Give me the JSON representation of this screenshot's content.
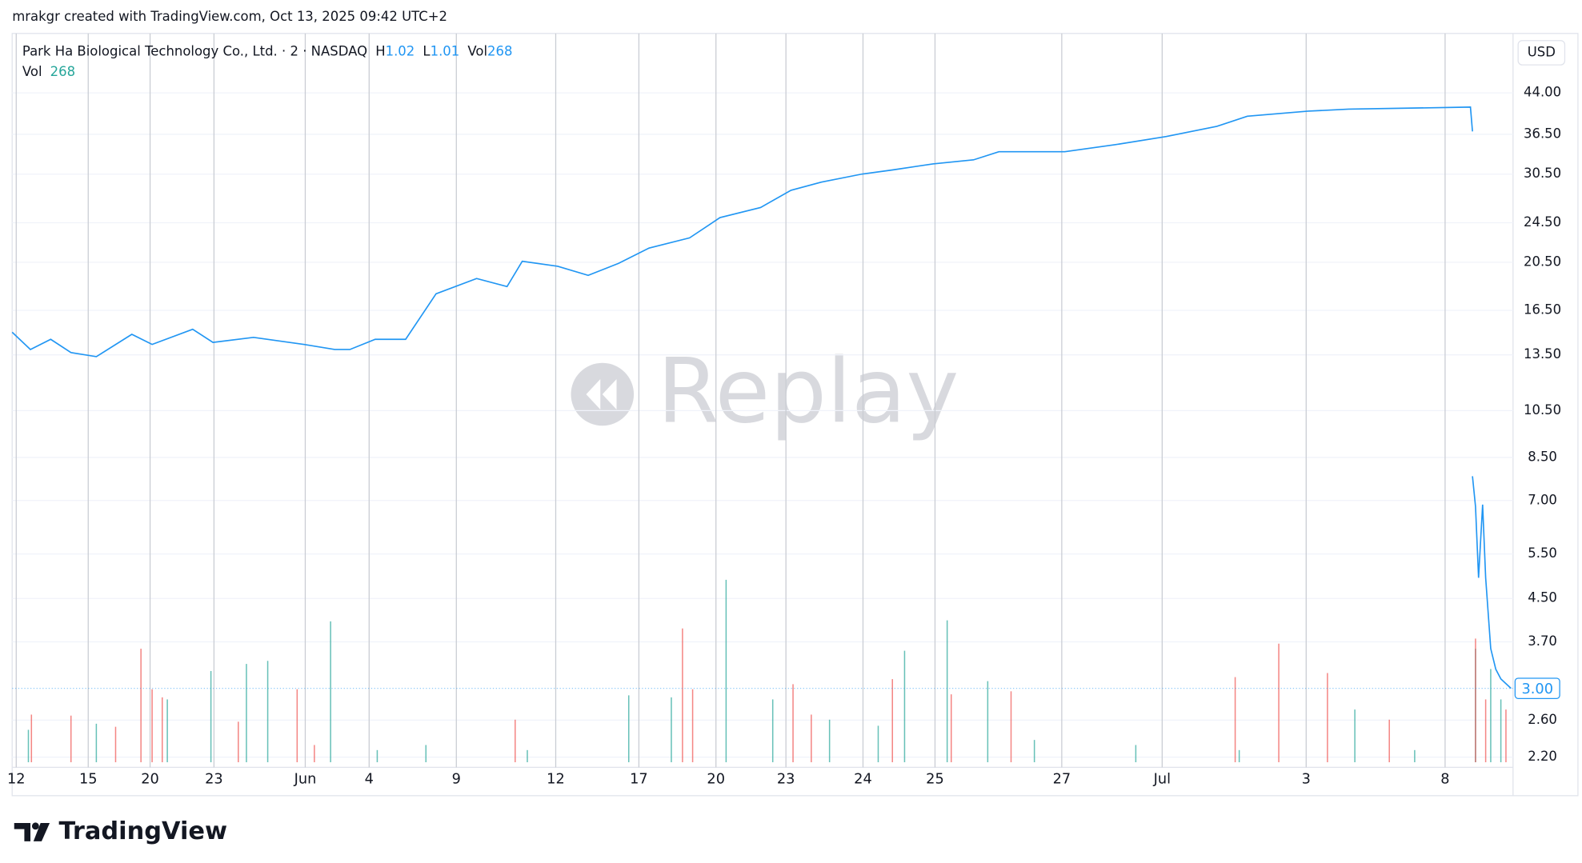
{
  "page": {
    "credit": "mrakgr created with TradingView.com, Oct 13, 2025 09:42 UTC+2",
    "brand": "TradingView",
    "watermark": "Replay",
    "currency": "USD"
  },
  "chart_data": {
    "type": "line",
    "legend": {
      "title": "Park Ha Biological Technology Co., Ltd. · 2 · NASDAQ",
      "high_key": "H",
      "high": "1.02",
      "low_key": "L",
      "low": "1.01",
      "vol_key": "Vol",
      "vol": "268"
    },
    "last_value_label": "3.00",
    "log_scale": true,
    "grid": true,
    "xlim": [
      0,
      1480
    ],
    "xticks": [
      {
        "value": 4,
        "label": "12"
      },
      {
        "value": 75,
        "label": "15"
      },
      {
        "value": 136,
        "label": "20"
      },
      {
        "value": 199,
        "label": "23"
      },
      {
        "value": 289,
        "label": "Jun"
      },
      {
        "value": 352,
        "label": "4"
      },
      {
        "value": 438,
        "label": "9"
      },
      {
        "value": 536,
        "label": "12"
      },
      {
        "value": 618,
        "label": "17"
      },
      {
        "value": 694,
        "label": "20"
      },
      {
        "value": 763,
        "label": "23"
      },
      {
        "value": 839,
        "label": "24"
      },
      {
        "value": 910,
        "label": "25"
      },
      {
        "value": 1035,
        "label": "27"
      },
      {
        "value": 1134,
        "label": "Jul"
      },
      {
        "value": 1276,
        "label": "3"
      },
      {
        "value": 1413,
        "label": "8"
      }
    ],
    "ylim": [
      2.15,
      57
    ],
    "yticks": [
      {
        "value": 44,
        "label": "44.00"
      },
      {
        "value": 36.5,
        "label": "36.50"
      },
      {
        "value": 30.5,
        "label": "30.50"
      },
      {
        "value": 24.5,
        "label": "24.50"
      },
      {
        "value": 20.5,
        "label": "20.50"
      },
      {
        "value": 16.5,
        "label": "16.50"
      },
      {
        "value": 13.5,
        "label": "13.50"
      },
      {
        "value": 10.5,
        "label": "10.50"
      },
      {
        "value": 8.5,
        "label": "8.50"
      },
      {
        "value": 7,
        "label": "7.00"
      },
      {
        "value": 5.5,
        "label": "5.50"
      },
      {
        "value": 4.5,
        "label": "4.50"
      },
      {
        "value": 3.7,
        "label": "3.70"
      },
      {
        "value": 2.6,
        "label": "2.60"
      },
      {
        "value": 2.2,
        "label": "2.20"
      }
    ],
    "y2lim": [
      0,
      7170
    ],
    "series": [
      {
        "color": "#2196f3",
        "x": [
          0,
          18,
          38,
          58,
          83,
          118,
          138,
          178,
          198,
          238,
          288,
          318,
          333,
          358,
          388,
          418,
          458,
          488,
          503,
          538,
          568,
          598,
          628,
          668,
          698,
          738,
          768,
          798,
          838,
          868,
          908,
          948,
          973,
          1038,
          1088,
          1138,
          1188,
          1218,
          1278,
          1318,
          1438,
          1440,
          1441,
          1440,
          1443,
          1446,
          1450,
          1453,
          1458,
          1463,
          1468,
          1478
        ],
        "values": [
          14.95,
          13.83,
          14.48,
          13.64,
          13.39,
          14.81,
          14.15,
          15.15,
          14.28,
          14.61,
          14.15,
          13.83,
          13.83,
          14.48,
          14.48,
          17.78,
          19.05,
          18.37,
          20.59,
          20.13,
          19.32,
          20.4,
          21.85,
          22.88,
          25.07,
          26.24,
          28.36,
          29.42,
          30.51,
          31.08,
          31.94,
          32.53,
          33.75,
          33.75,
          34.84,
          36.14,
          37.84,
          39.6,
          40.52,
          40.89,
          41.27,
          36.98,
          null,
          7.81,
          6.81,
          4.94,
          6.87,
          4.94,
          3.59,
          3.27,
          3.13,
          3.0
        ]
      },
      {
        "type": "bar",
        "axis": "y2",
        "color": "#26a69a",
        "x": [
          16,
          83,
          153,
          196,
          231,
          252,
          314,
          360,
          408,
          508,
          608,
          650,
          704,
          750,
          806,
          854,
          880,
          922,
          962,
          1008,
          1108,
          1210,
          1324,
          1383,
          1443,
          1458,
          1468
        ],
        "values": [
          320,
          380,
          620,
          900,
          970,
          1000,
          1390,
          120,
          170,
          120,
          660,
          640,
          1800,
          620,
          420,
          360,
          1100,
          1400,
          800,
          220,
          170,
          120,
          520,
          120,
          1120,
          920,
          620
        ]
      },
      {
        "type": "bar",
        "axis": "y2",
        "color": "#ef5350",
        "x": [
          19,
          58,
          102,
          127,
          138,
          148,
          223,
          281,
          298,
          496,
          661,
          671,
          770,
          788,
          868,
          926,
          985,
          1206,
          1249,
          1297,
          1358,
          1443,
          1453,
          1473
        ],
        "values": [
          470,
          460,
          350,
          1120,
          720,
          640,
          400,
          720,
          170,
          420,
          1320,
          720,
          770,
          470,
          820,
          670,
          700,
          840,
          1170,
          880,
          420,
          1220,
          620,
          520
        ]
      }
    ]
  }
}
